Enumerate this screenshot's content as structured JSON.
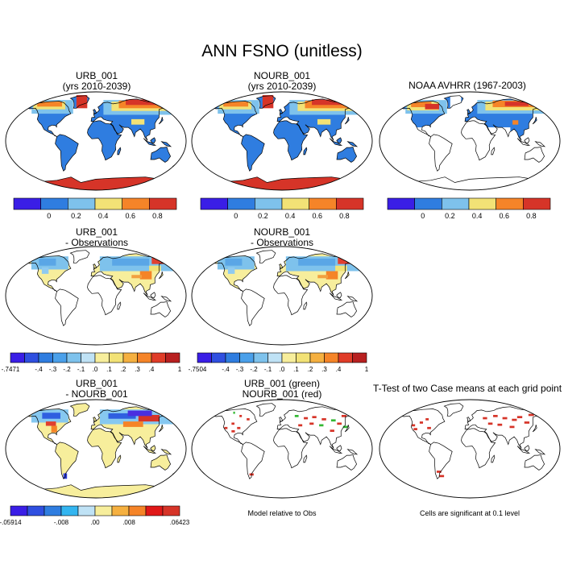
{
  "title": "ANN FSNO (unitless)",
  "colors": {
    "violet": "#3a1ee6",
    "blue": "#2f7de0",
    "lightblue": "#7ec2ec",
    "yellow": "#f2e276",
    "orange": "#f58428",
    "red": "#d63428",
    "green": "#33b833",
    "lightyellow": "#f7ee9c"
  },
  "panels": [
    {
      "id": "p1",
      "title1": "URB_001",
      "title2": "(yrs 2010-2039)",
      "type": "model"
    },
    {
      "id": "p2",
      "title1": "NOURB_001",
      "title2": "(yrs 2010-2039)",
      "type": "model"
    },
    {
      "id": "p3",
      "title1": "NOAA AVHRR (1967-2003)",
      "title2": "",
      "type": "obs"
    },
    {
      "id": "p4",
      "title1": "URB_001",
      "title2": "- Observations",
      "type": "diff"
    },
    {
      "id": "p5",
      "title1": "NOURB_001",
      "title2": "- Observations",
      "type": "diff"
    },
    {
      "id": "p7",
      "title1": "URB_001",
      "title2": "- NOURB_001",
      "type": "casediff"
    },
    {
      "id": "p8",
      "title1": "URB_001 (green)",
      "title2": "NOURB_001 (red)",
      "type": "rel"
    },
    {
      "id": "p9",
      "title1": "T-Test of two Case means at each grid point",
      "title2": "",
      "type": "ttest"
    }
  ],
  "colorbars": {
    "c1": {
      "labels": [
        "0",
        "0.2",
        "0.4",
        "0.6",
        "0.8"
      ]
    },
    "c2": {
      "labels": [
        "0",
        "0.2",
        "0.4",
        "0.6",
        "0.8"
      ]
    },
    "c3": {
      "labels": [
        "0",
        "0.2",
        "0.4",
        "0.6",
        "0.8"
      ]
    },
    "c4": {
      "labels": [
        "-.7471",
        "-.4",
        "-.3",
        "-.2",
        "-.1",
        ".0",
        ".1",
        ".2",
        ".3",
        ".4",
        "1"
      ]
    },
    "c5": {
      "labels": [
        "-.7504",
        "-.4",
        "-.3",
        "-.2",
        "-.1",
        ".0",
        ".1",
        ".2",
        ".3",
        ".4",
        "1"
      ]
    },
    "c7": {
      "labels": [
        "-.05914",
        "-.008",
        ".00",
        ".008",
        ".06423"
      ]
    }
  },
  "notes": {
    "rel": "Model relative to Obs",
    "ttest": "Cells are significant at 0.1 level"
  }
}
